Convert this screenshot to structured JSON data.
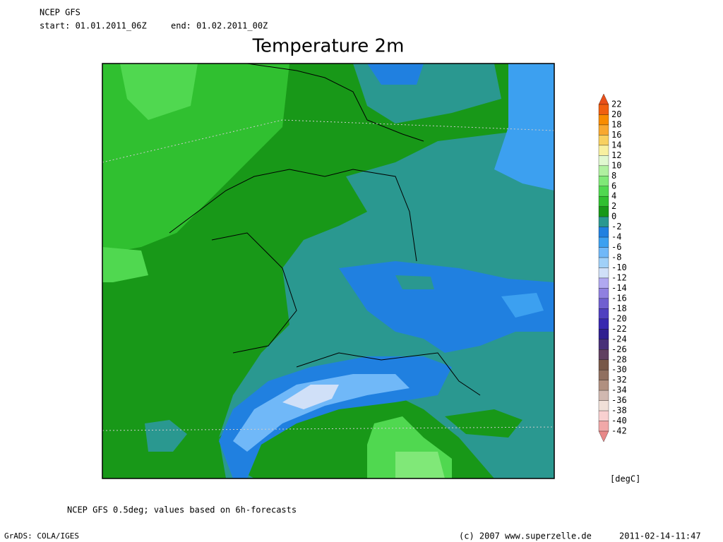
{
  "header": {
    "source": "NCEP GFS",
    "start": "start: 01.01.2011_06Z",
    "end": "end: 01.02.2011_00Z"
  },
  "title": "Temperature 2m",
  "colorbar": {
    "labels": [
      22,
      20,
      18,
      16,
      14,
      12,
      10,
      8,
      6,
      4,
      2,
      0,
      -2,
      -4,
      -6,
      -8,
      -10,
      -12,
      -14,
      -16,
      -18,
      -20,
      -22,
      -24,
      -26,
      -28,
      -30,
      -32,
      -34,
      -36,
      -38,
      -40,
      -42
    ],
    "colors": [
      "#e8501a",
      "#f06010",
      "#f88c00",
      "#f8a830",
      "#f8d060",
      "#f8f0a0",
      "#e0f8d0",
      "#b0f0a0",
      "#80e878",
      "#50d850",
      "#30c030",
      "#189818",
      "#2a9890",
      "#2080e0",
      "#3ca0f0",
      "#70b8f8",
      "#a0d0f8",
      "#d0e0f8",
      "#b0a8f0",
      "#9080e0",
      "#7060d0",
      "#5040c0",
      "#3828b0",
      "#302090",
      "#483078",
      "#604060",
      "#785848",
      "#907060",
      "#b09080",
      "#d0b8b0",
      "#f0e0d8",
      "#f8d0d0",
      "#f0a8a8",
      "#e88888"
    ],
    "unit": "[degC]"
  },
  "footer": {
    "note": "NCEP GFS 0.5deg; values based on 6h-forecasts",
    "software": "GrADS: COLA/IGES",
    "copyright": "(c) 2007 www.superzelle.de",
    "timestamp": "2011-02-14-11:47"
  }
}
